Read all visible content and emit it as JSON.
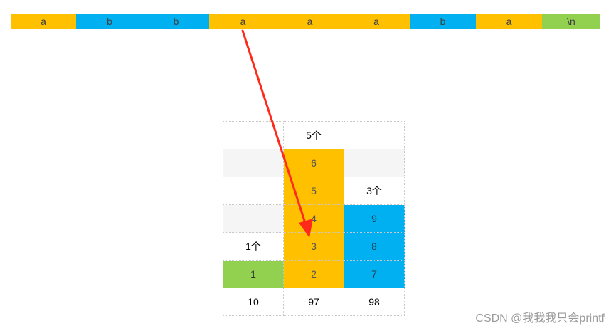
{
  "strip": [
    {
      "text": "a",
      "color": "#ffc000"
    },
    {
      "text": "b",
      "color": "#00b0f0"
    },
    {
      "text": "b",
      "color": "#00b0f0"
    },
    {
      "text": "a",
      "color": "#ffc000"
    },
    {
      "text": "a",
      "color": "#ffc000"
    },
    {
      "text": "a",
      "color": "#ffc000"
    },
    {
      "text": "b",
      "color": "#00b0f0"
    },
    {
      "text": "a",
      "color": "#ffc000"
    },
    {
      "text": "\\n",
      "color": "#92d050"
    }
  ],
  "grid": {
    "rows": [
      [
        "",
        "5个",
        ""
      ],
      [
        "",
        "6",
        ""
      ],
      [
        "",
        "5",
        "3个"
      ],
      [
        "",
        "4",
        "9"
      ],
      [
        "1个",
        "3",
        "8"
      ],
      [
        "1",
        "2",
        "7"
      ],
      [
        "10",
        "97",
        "98"
      ]
    ]
  },
  "colors": {
    "yellow": "#ffc000",
    "blue": "#00b0f0",
    "green": "#92d050",
    "arrow": "#ff2a1a"
  },
  "watermark": "CSDN @我我我只会printf"
}
